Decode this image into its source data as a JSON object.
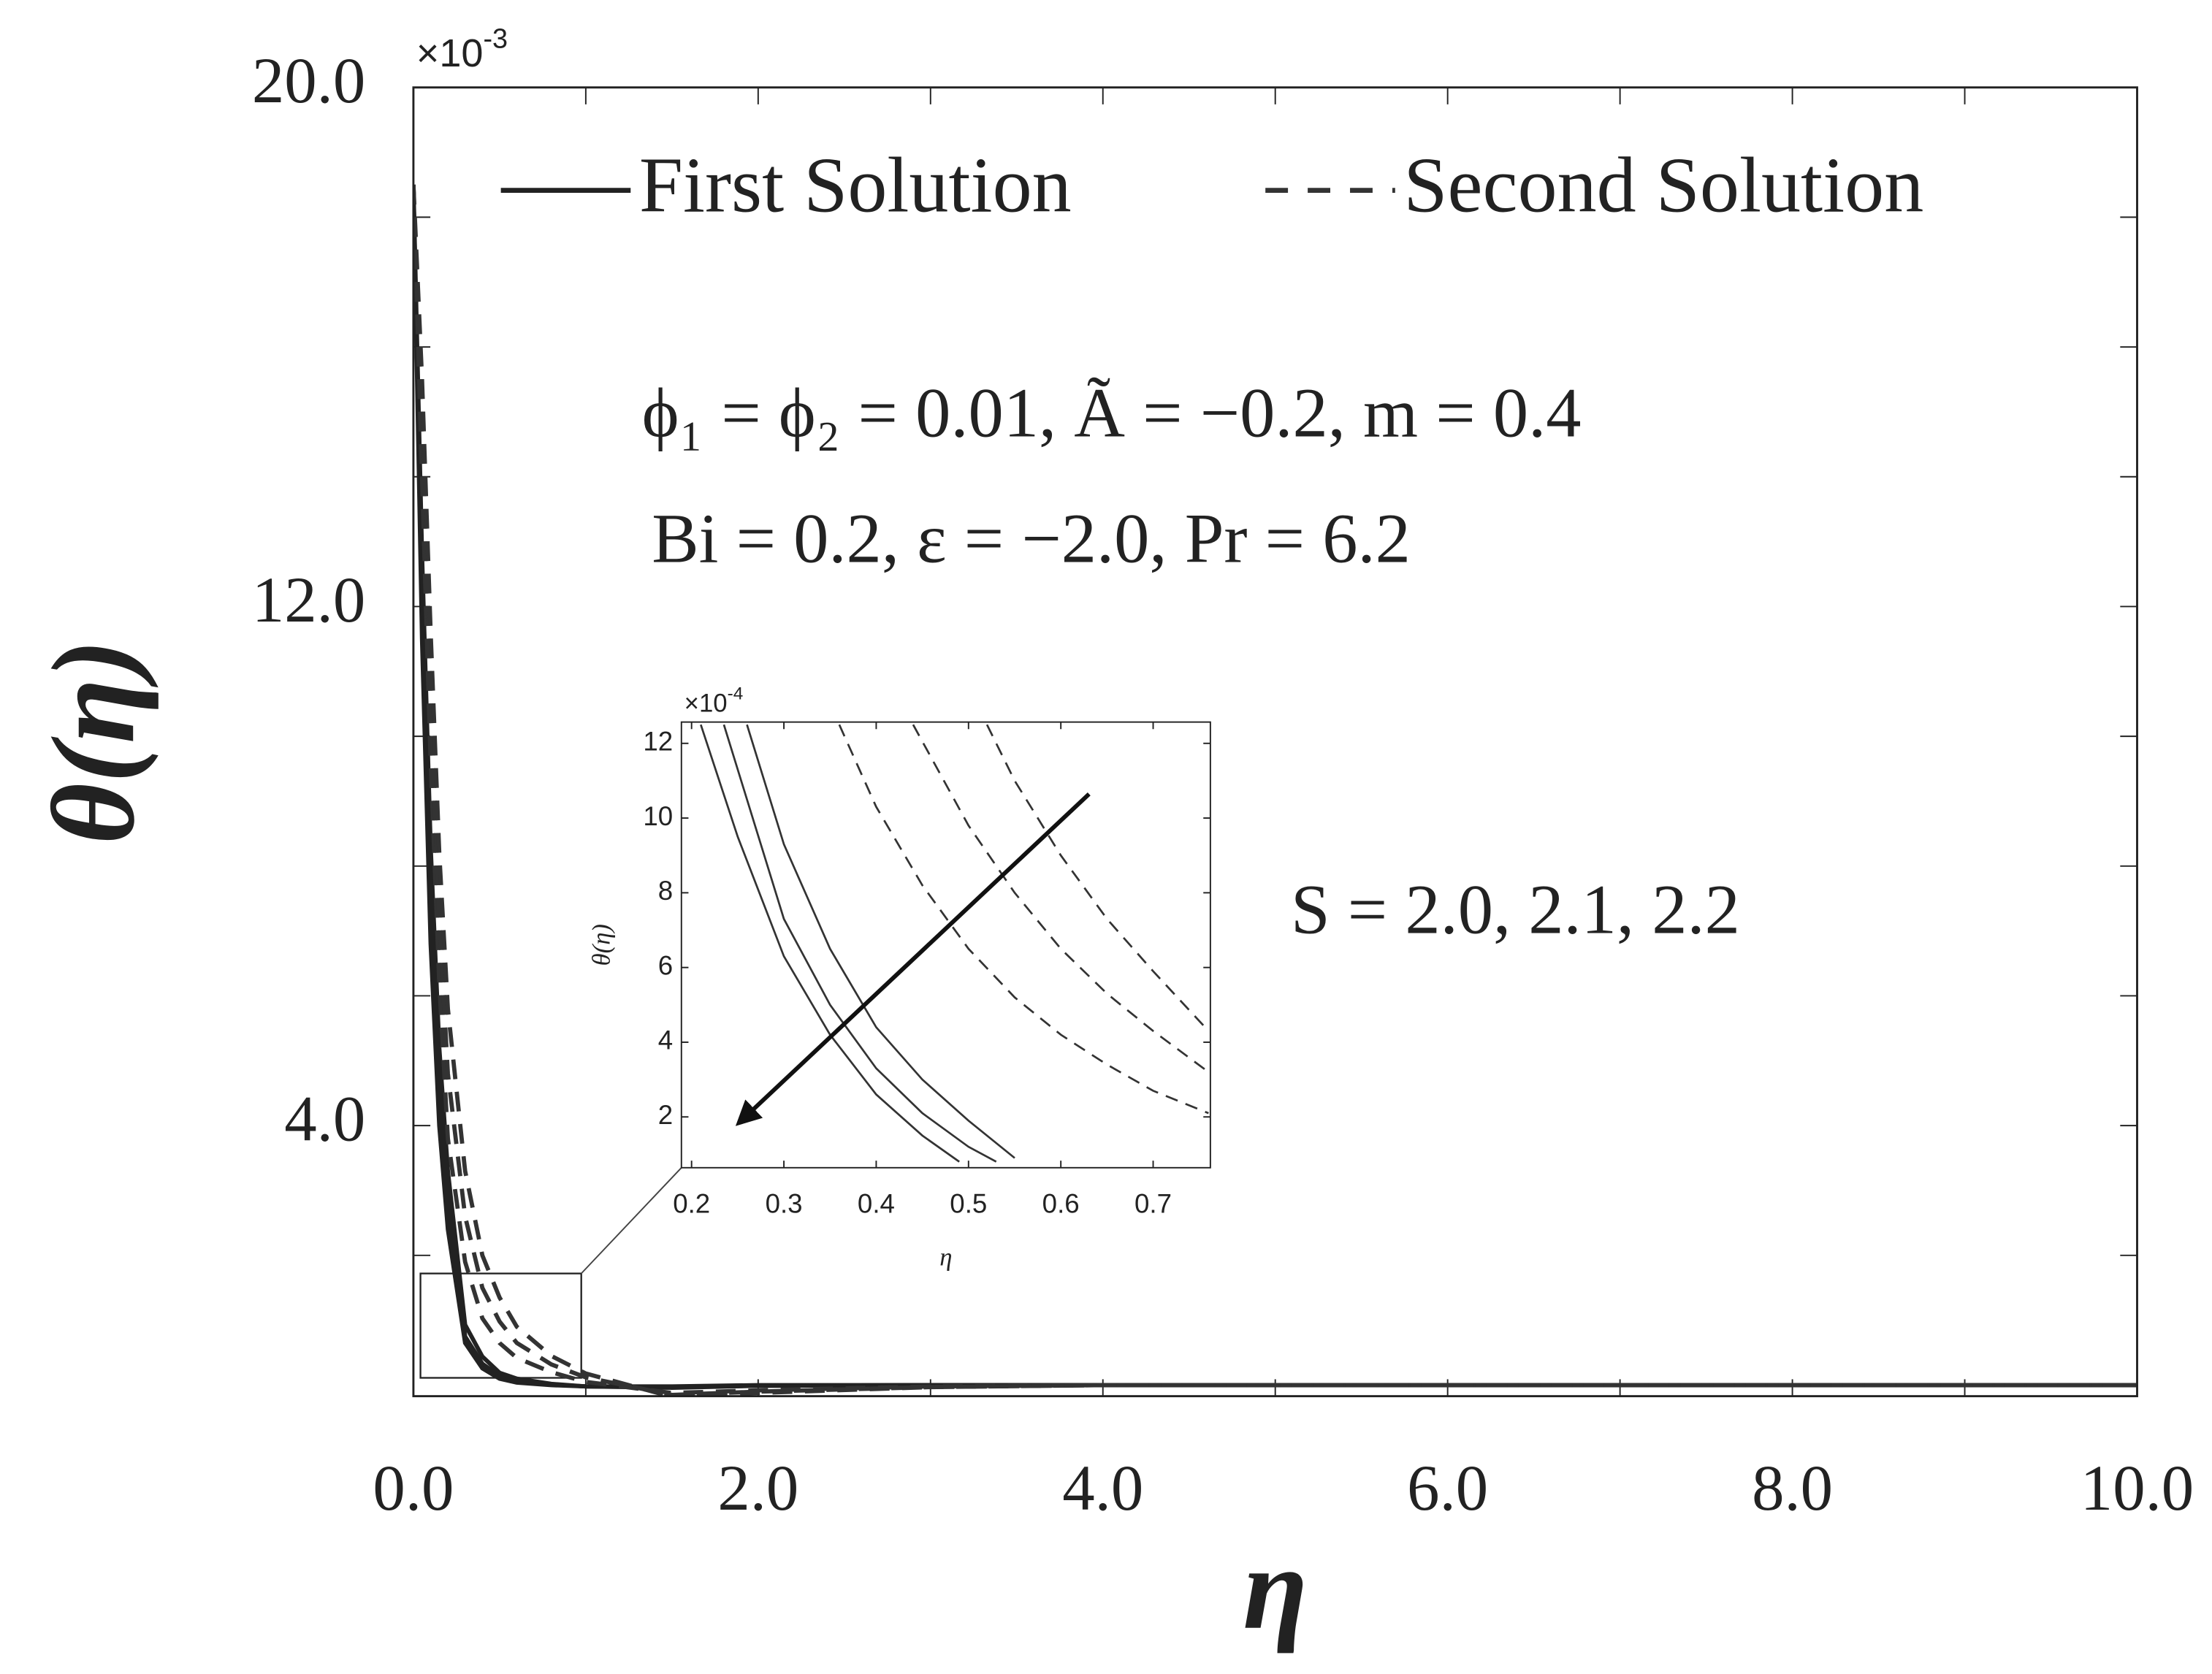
{
  "chart_data": [
    {
      "type": "line",
      "ylabel": "θ(η)",
      "xlabel": "η",
      "y_multiplier": {
        "base": "×10",
        "exponent": "-3"
      },
      "annotations": [
        "ϕ₁ = ϕ₂ = 0.01,  Ã = −0.2,  m = 0.4",
        "Bi = 0.2,  ε = −2.0,  Pr = 6.2",
        "S = 2.0, 2.1, 2.2"
      ],
      "xlim": [
        0,
        10
      ],
      "ylim": [
        -0.17,
        20
      ],
      "xticks": [
        {
          "value": 0,
          "label": "0.0"
        },
        {
          "value": 2,
          "label": "2.0"
        },
        {
          "value": 4,
          "label": "4.0"
        },
        {
          "value": 6,
          "label": "6.0"
        },
        {
          "value": 8,
          "label": "8.0"
        },
        {
          "value": 10,
          "label": "10.0"
        }
      ],
      "xminorticks": [
        1,
        3,
        5,
        7,
        9
      ],
      "yticks": [
        {
          "value": 4,
          "label": "4.0"
        },
        {
          "value": 12,
          "label": "12.0"
        },
        {
          "value": 20,
          "label": "20.0"
        }
      ],
      "yminorticks": [
        2,
        6,
        8,
        10,
        14,
        16,
        18
      ],
      "legend": "top",
      "series": [
        {
          "name": "First Solution",
          "color": "#222222",
          "dash": false,
          "lines": [
            {
              "x": [
                0,
                0.05,
                0.1,
                0.15,
                0.2,
                0.3,
                0.4,
                0.5,
                0.6,
                0.8,
                1.0,
                1.5,
                2.0,
                3.0,
                4.0,
                6.0,
                8.0,
                10.0
              ],
              "values": [
                18.5,
                11.5,
                6.8,
                4.0,
                2.4,
                0.65,
                0.26,
                0.1,
                0.04,
                0.0,
                -0.02,
                -0.02,
                0,
                0,
                0,
                0,
                0,
                0
              ]
            },
            {
              "x": [
                0,
                0.05,
                0.1,
                0.15,
                0.2,
                0.3,
                0.4,
                0.5,
                0.6,
                0.8,
                1.0,
                1.5,
                2.0,
                3.0,
                4.0,
                6.0,
                8.0,
                10.0
              ],
              "values": [
                18.5,
                12.2,
                7.6,
                4.6,
                2.8,
                0.75,
                0.33,
                0.14,
                0.07,
                0.01,
                -0.02,
                -0.03,
                -0.01,
                0,
                0,
                0,
                0,
                0
              ]
            },
            {
              "x": [
                0,
                0.05,
                0.1,
                0.15,
                0.2,
                0.3,
                0.4,
                0.5,
                0.6,
                0.8,
                1.0,
                1.5,
                2.0,
                3.0,
                4.0,
                6.0,
                8.0,
                10.0
              ],
              "values": [
                18.5,
                12.8,
                8.3,
                5.2,
                3.3,
                0.93,
                0.44,
                0.19,
                0.1,
                0.02,
                -0.02,
                -0.04,
                -0.01,
                0,
                0,
                0,
                0,
                0
              ]
            }
          ]
        },
        {
          "name": "Second Solution",
          "color": "#333333",
          "dash": true,
          "lines": [
            {
              "x": [
                0,
                0.05,
                0.1,
                0.15,
                0.2,
                0.3,
                0.4,
                0.5,
                0.6,
                0.8,
                1.0,
                1.5,
                2.0,
                3.0,
                4.0,
                6.0,
                8.0,
                10.0
              ],
              "values": [
                18.5,
                14.0,
                9.6,
                6.2,
                3.8,
                1.9,
                1.03,
                0.65,
                0.42,
                0.2,
                0.05,
                -0.12,
                -0.08,
                -0.02,
                0,
                0,
                0,
                0
              ]
            },
            {
              "x": [
                0,
                0.05,
                0.1,
                0.15,
                0.2,
                0.3,
                0.4,
                0.5,
                0.6,
                0.8,
                1.0,
                1.5,
                2.0,
                3.0,
                4.0,
                6.0,
                8.0,
                10.0
              ],
              "values": [
                18.5,
                14.8,
                10.6,
                7.2,
                4.8,
                2.6,
                1.5,
                0.98,
                0.65,
                0.32,
                0.12,
                -0.15,
                -0.1,
                -0.03,
                0,
                0,
                0,
                0
              ]
            },
            {
              "x": [
                0,
                0.05,
                0.1,
                0.15,
                0.2,
                0.3,
                0.4,
                0.5,
                0.6,
                0.8,
                1.0,
                1.5,
                2.0,
                3.0,
                4.0,
                6.0,
                8.0,
                10.0
              ],
              "values": [
                18.5,
                15.5,
                11.6,
                8.2,
                5.8,
                3.3,
                2.0,
                1.35,
                0.9,
                0.45,
                0.18,
                -0.18,
                -0.12,
                -0.03,
                0,
                0,
                0,
                0
              ]
            }
          ]
        }
      ]
    },
    {
      "type": "line",
      "ylabel": "θ(η)",
      "xlabel": "η",
      "y_multiplier": {
        "base": "×10",
        "exponent": "-4"
      },
      "xlim": [
        0.189,
        0.762
      ],
      "ylim": [
        0.64,
        12.57
      ],
      "xticks": [
        0.2,
        0.3,
        0.4,
        0.5,
        0.6,
        0.7
      ],
      "yticks": [
        2,
        4,
        6,
        8,
        10,
        12
      ],
      "series": [
        {
          "color": "#333333",
          "dash": false,
          "lines": [
            {
              "x": [
                0.21,
                0.25,
                0.3,
                0.35,
                0.4,
                0.45,
                0.49
              ],
              "values": [
                12.5,
                9.5,
                6.3,
                4.2,
                2.6,
                1.5,
                0.8
              ]
            },
            {
              "x": [
                0.235,
                0.3,
                0.35,
                0.4,
                0.45,
                0.5,
                0.53
              ],
              "values": [
                12.5,
                7.3,
                5.0,
                3.3,
                2.1,
                1.2,
                0.8
              ]
            },
            {
              "x": [
                0.26,
                0.3,
                0.35,
                0.4,
                0.45,
                0.5,
                0.55
              ],
              "values": [
                12.5,
                9.3,
                6.5,
                4.4,
                3.0,
                1.9,
                0.9
              ]
            }
          ]
        },
        {
          "color": "#333333",
          "dash": true,
          "lines": [
            {
              "x": [
                0.36,
                0.4,
                0.45,
                0.5,
                0.55,
                0.6,
                0.65,
                0.7,
                0.76
              ],
              "values": [
                12.5,
                10.3,
                8.2,
                6.5,
                5.2,
                4.2,
                3.4,
                2.7,
                2.1
              ]
            },
            {
              "x": [
                0.44,
                0.5,
                0.55,
                0.6,
                0.65,
                0.7,
                0.76
              ],
              "values": [
                12.5,
                9.8,
                8.0,
                6.5,
                5.3,
                4.3,
                3.2
              ]
            },
            {
              "x": [
                0.52,
                0.55,
                0.6,
                0.65,
                0.7,
                0.76
              ],
              "values": [
                12.5,
                11.0,
                9.0,
                7.3,
                5.9,
                4.3
              ]
            }
          ]
        }
      ]
    }
  ]
}
